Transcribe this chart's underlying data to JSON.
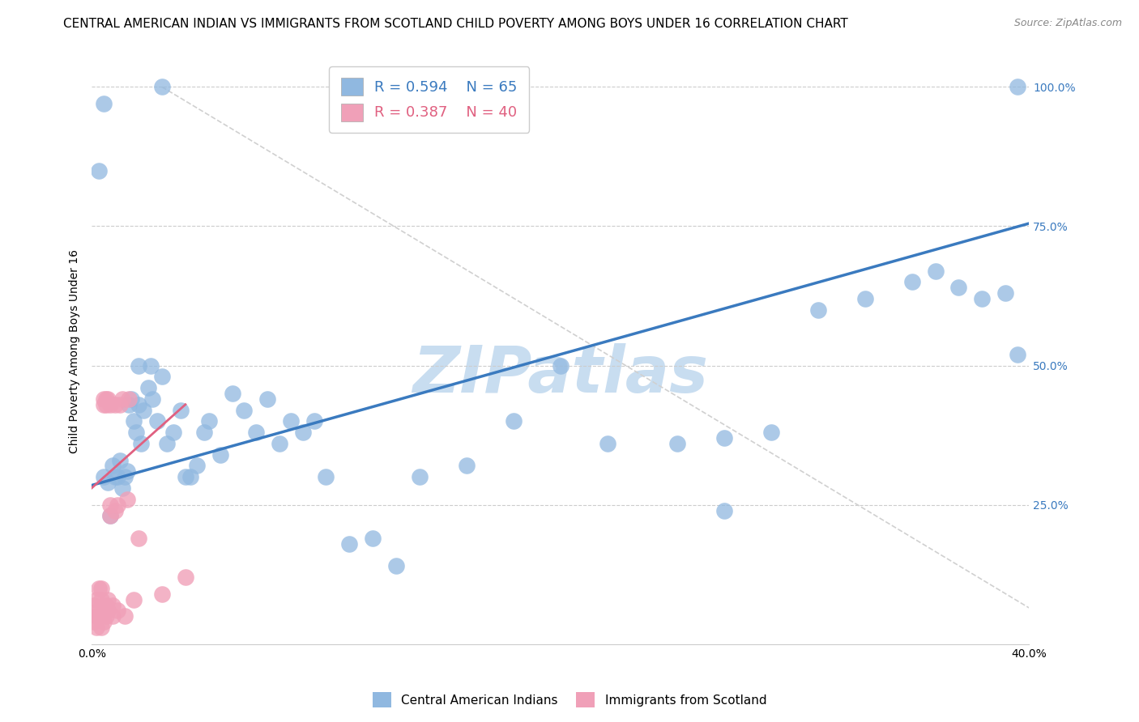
{
  "title": "CENTRAL AMERICAN INDIAN VS IMMIGRANTS FROM SCOTLAND CHILD POVERTY AMONG BOYS UNDER 16 CORRELATION CHART",
  "source": "Source: ZipAtlas.com",
  "ylabel": "Child Poverty Among Boys Under 16",
  "legend_blue_r": "R = 0.594",
  "legend_blue_n": "N = 65",
  "legend_pink_r": "R = 0.387",
  "legend_pink_n": "N = 40",
  "legend_blue_label": "Central American Indians",
  "legend_pink_label": "Immigrants from Scotland",
  "xlim": [
    0.0,
    0.4
  ],
  "ylim": [
    0.0,
    1.05
  ],
  "blue_line_color": "#3a7abf",
  "pink_line_color": "#e06080",
  "dot_blue_color": "#90b8e0",
  "dot_pink_color": "#f0a0b8",
  "ref_line_color": "#d0d0d0",
  "grid_color": "#cccccc",
  "watermark": "ZIPatlas",
  "watermark_color": "#c8ddf0",
  "title_fontsize": 11,
  "axis_label_fontsize": 10,
  "tick_fontsize": 10,
  "legend_fontsize": 13,
  "source_fontsize": 9,
  "background_color": "#ffffff",
  "blue_x": [
    0.005,
    0.007,
    0.009,
    0.01,
    0.011,
    0.012,
    0.013,
    0.014,
    0.015,
    0.016,
    0.017,
    0.018,
    0.019,
    0.02,
    0.021,
    0.022,
    0.024,
    0.025,
    0.026,
    0.028,
    0.03,
    0.032,
    0.035,
    0.038,
    0.04,
    0.042,
    0.045,
    0.048,
    0.05,
    0.055,
    0.06,
    0.065,
    0.07,
    0.075,
    0.08,
    0.085,
    0.09,
    0.095,
    0.1,
    0.11,
    0.12,
    0.13,
    0.14,
    0.16,
    0.18,
    0.2,
    0.22,
    0.005,
    0.03,
    0.003,
    0.25,
    0.27,
    0.29,
    0.31,
    0.33,
    0.35,
    0.36,
    0.37,
    0.38,
    0.39,
    0.395,
    0.008,
    0.02,
    0.27,
    0.395
  ],
  "blue_y": [
    0.3,
    0.29,
    0.32,
    0.3,
    0.3,
    0.33,
    0.28,
    0.3,
    0.31,
    0.43,
    0.44,
    0.4,
    0.38,
    0.43,
    0.36,
    0.42,
    0.46,
    0.5,
    0.44,
    0.4,
    0.48,
    0.36,
    0.38,
    0.42,
    0.3,
    0.3,
    0.32,
    0.38,
    0.4,
    0.34,
    0.45,
    0.42,
    0.38,
    0.44,
    0.36,
    0.4,
    0.38,
    0.4,
    0.3,
    0.18,
    0.19,
    0.14,
    0.3,
    0.32,
    0.4,
    0.5,
    0.36,
    0.97,
    1.0,
    0.85,
    0.36,
    0.37,
    0.38,
    0.6,
    0.62,
    0.65,
    0.67,
    0.64,
    0.62,
    0.63,
    0.52,
    0.23,
    0.5,
    0.24,
    1.0
  ],
  "pink_x": [
    0.001,
    0.001,
    0.002,
    0.002,
    0.002,
    0.003,
    0.003,
    0.003,
    0.004,
    0.004,
    0.004,
    0.005,
    0.005,
    0.005,
    0.005,
    0.006,
    0.006,
    0.006,
    0.006,
    0.007,
    0.007,
    0.007,
    0.008,
    0.008,
    0.008,
    0.009,
    0.009,
    0.01,
    0.01,
    0.011,
    0.011,
    0.012,
    0.013,
    0.014,
    0.015,
    0.016,
    0.018,
    0.02,
    0.03,
    0.04
  ],
  "pink_y": [
    0.04,
    0.07,
    0.05,
    0.08,
    0.03,
    0.06,
    0.05,
    0.1,
    0.08,
    0.1,
    0.03,
    0.04,
    0.06,
    0.43,
    0.44,
    0.43,
    0.44,
    0.05,
    0.07,
    0.44,
    0.06,
    0.08,
    0.43,
    0.25,
    0.23,
    0.05,
    0.07,
    0.24,
    0.43,
    0.06,
    0.25,
    0.43,
    0.44,
    0.05,
    0.26,
    0.44,
    0.08,
    0.19,
    0.09,
    0.12
  ],
  "blue_trend_x": [
    0.0,
    0.4
  ],
  "blue_trend_y": [
    0.285,
    0.755
  ],
  "pink_trend_x": [
    0.0,
    0.04
  ],
  "pink_trend_y": [
    0.28,
    0.43
  ],
  "ref_line_x": [
    0.03,
    0.4
  ],
  "ref_line_y": [
    1.0,
    0.065
  ]
}
